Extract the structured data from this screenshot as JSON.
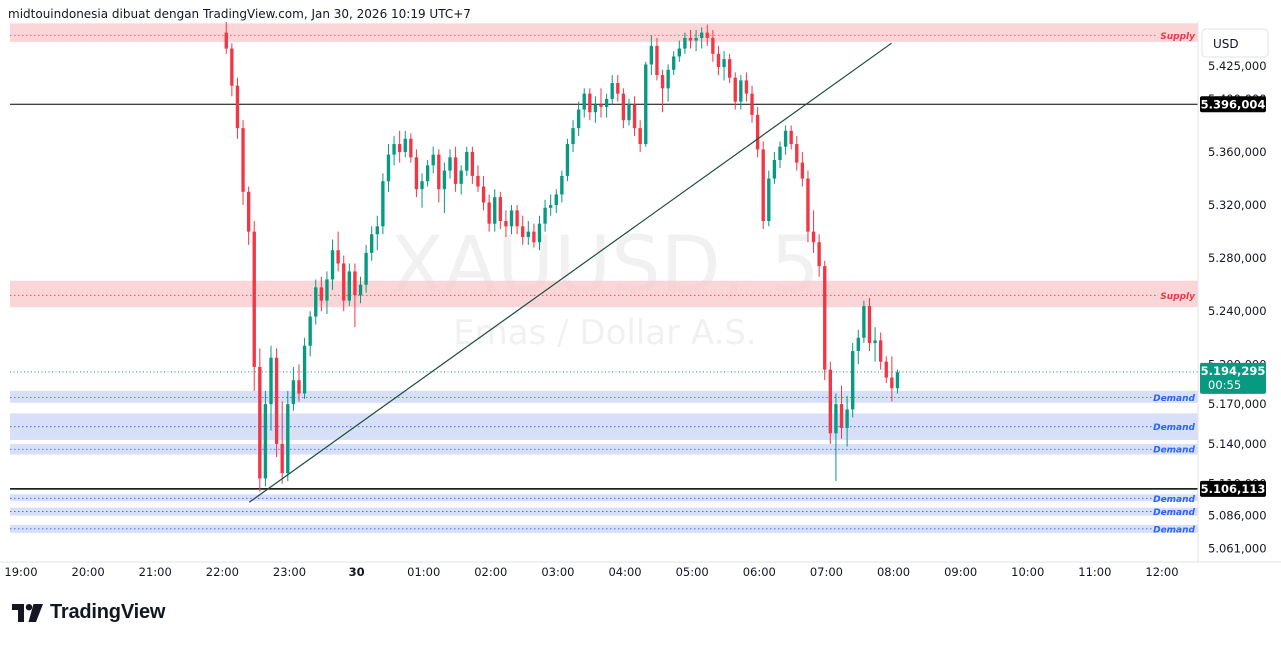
{
  "header": {
    "source_line": "midtouindonesia dibuat dengan TradingView.com, Jan 30, 2026 10:19 UTC+7"
  },
  "watermark": {
    "symbol": "XAUUSD, 5",
    "description": "Emas / Dollar A.S."
  },
  "currency_button": "USD",
  "brand": {
    "name": "TradingView"
  },
  "colors": {
    "up": "#089981",
    "down": "#F23645",
    "supply_zone": "#F9C8CC",
    "demand_zone": "#C9D5F6",
    "supply_label": "#F23645",
    "demand_label": "#2962FF",
    "trendline": "#1E4D3B",
    "hline": "#000000",
    "last_price_bg": "#089981"
  },
  "chart_data": {
    "type": "candlestick",
    "symbol": "XAUUSD",
    "timeframe": "5",
    "ylim": [
      5051,
      5458
    ],
    "y_ticks": [
      {
        "value": 5425,
        "label": "5.425,000"
      },
      {
        "value": 5400,
        "label": "5.400,000"
      },
      {
        "value": 5360,
        "label": "5.360,000"
      },
      {
        "value": 5320,
        "label": "5.320,000"
      },
      {
        "value": 5280,
        "label": "5.280,000"
      },
      {
        "value": 5240,
        "label": "5.240,000"
      },
      {
        "value": 5200,
        "label": "5.200,000"
      },
      {
        "value": 5170,
        "label": "5.170,000"
      },
      {
        "value": 5140,
        "label": "5.140,000"
      },
      {
        "value": 5110,
        "label": "5.110,000"
      },
      {
        "value": 5086,
        "label": "5.086,000"
      },
      {
        "value": 5061,
        "label": "5.061,000"
      }
    ],
    "x_ticks": [
      {
        "hour": 19,
        "label": "19:00"
      },
      {
        "hour": 20,
        "label": "20:00"
      },
      {
        "hour": 21,
        "label": "21:00"
      },
      {
        "hour": 22,
        "label": "22:00"
      },
      {
        "hour": 23,
        "label": "23:00"
      },
      {
        "hour": 24,
        "label": "30"
      },
      {
        "hour": 25,
        "label": "01:00"
      },
      {
        "hour": 26,
        "label": "02:00"
      },
      {
        "hour": 27,
        "label": "03:00"
      },
      {
        "hour": 28,
        "label": "04:00"
      },
      {
        "hour": 29,
        "label": "05:00"
      },
      {
        "hour": 30,
        "label": "06:00"
      },
      {
        "hour": 31,
        "label": "07:00"
      },
      {
        "hour": 32,
        "label": "08:00"
      },
      {
        "hour": 33,
        "label": "09:00"
      },
      {
        "hour": 34,
        "label": "10:00"
      },
      {
        "hour": 35,
        "label": "11:00"
      },
      {
        "hour": 36,
        "label": "12:00"
      }
    ],
    "candle_start_hour": 22,
    "candle_interval_minutes": 5,
    "zones": [
      {
        "kind": "supply",
        "label": "Supply",
        "top": 5457,
        "bottom": 5443,
        "line": 5448
      },
      {
        "kind": "supply",
        "label": "Supply",
        "top": 5263,
        "bottom": 5243,
        "line": 5252
      },
      {
        "kind": "demand",
        "label": "Demand",
        "top": 5180,
        "bottom": 5171,
        "line": 5175
      },
      {
        "kind": "demand",
        "label": "Demand",
        "top": 5163,
        "bottom": 5143,
        "line": 5153
      },
      {
        "kind": "demand",
        "label": "Demand",
        "top": 5140,
        "bottom": 5132,
        "line": 5136
      },
      {
        "kind": "demand",
        "label": "Demand",
        "top": 5102,
        "bottom": 5097,
        "line": 5099
      },
      {
        "kind": "demand",
        "label": "Demand",
        "top": 5092,
        "bottom": 5086,
        "line": 5089
      },
      {
        "kind": "demand",
        "label": "Demand",
        "top": 5079,
        "bottom": 5073,
        "line": 5076
      }
    ],
    "horizontal_lines": [
      {
        "value": 5396.004,
        "label": "5.396,004"
      },
      {
        "value": 5106.113,
        "label": "5.106,113"
      }
    ],
    "last_price": {
      "value": 5194.295,
      "label": "5.194,295",
      "countdown": "00:55"
    },
    "trendline": {
      "from": {
        "hour": 22.4,
        "value": 5096
      },
      "to": {
        "hour": 31.97,
        "value": 5442
      }
    },
    "ohlc": [
      [
        5450,
        5458,
        5434,
        5438
      ],
      [
        5438,
        5442,
        5402,
        5410
      ],
      [
        5410,
        5416,
        5370,
        5378
      ],
      [
        5378,
        5384,
        5320,
        5330
      ],
      [
        5330,
        5334,
        5290,
        5300
      ],
      [
        5300,
        5308,
        5180,
        5198
      ],
      [
        5198,
        5212,
        5104,
        5114
      ],
      [
        5114,
        5180,
        5108,
        5170
      ],
      [
        5170,
        5214,
        5150,
        5205
      ],
      [
        5205,
        5212,
        5130,
        5140
      ],
      [
        5140,
        5172,
        5110,
        5118
      ],
      [
        5118,
        5180,
        5112,
        5170
      ],
      [
        5170,
        5198,
        5165,
        5188
      ],
      [
        5188,
        5200,
        5172,
        5178
      ],
      [
        5178,
        5220,
        5174,
        5214
      ],
      [
        5214,
        5240,
        5206,
        5236
      ],
      [
        5236,
        5264,
        5230,
        5258
      ],
      [
        5258,
        5266,
        5240,
        5248
      ],
      [
        5248,
        5270,
        5238,
        5264
      ],
      [
        5264,
        5294,
        5256,
        5286
      ],
      [
        5286,
        5300,
        5270,
        5276
      ],
      [
        5276,
        5282,
        5240,
        5248
      ],
      [
        5248,
        5276,
        5244,
        5270
      ],
      [
        5270,
        5276,
        5228,
        5252
      ],
      [
        5252,
        5266,
        5246,
        5260
      ],
      [
        5260,
        5290,
        5254,
        5284
      ],
      [
        5284,
        5304,
        5278,
        5298
      ],
      [
        5298,
        5312,
        5286,
        5304
      ],
      [
        5304,
        5344,
        5298,
        5338
      ],
      [
        5338,
        5366,
        5330,
        5358
      ],
      [
        5358,
        5372,
        5350,
        5366
      ],
      [
        5366,
        5376,
        5352,
        5360
      ],
      [
        5360,
        5376,
        5356,
        5370
      ],
      [
        5370,
        5374,
        5352,
        5356
      ],
      [
        5356,
        5362,
        5326,
        5332
      ],
      [
        5332,
        5344,
        5318,
        5338
      ],
      [
        5338,
        5354,
        5334,
        5350
      ],
      [
        5350,
        5364,
        5344,
        5358
      ],
      [
        5358,
        5362,
        5322,
        5332
      ],
      [
        5332,
        5352,
        5314,
        5346
      ],
      [
        5346,
        5362,
        5340,
        5356
      ],
      [
        5356,
        5364,
        5330,
        5336
      ],
      [
        5336,
        5350,
        5328,
        5346
      ],
      [
        5346,
        5364,
        5342,
        5360
      ],
      [
        5360,
        5364,
        5336,
        5342
      ],
      [
        5342,
        5350,
        5330,
        5334
      ],
      [
        5334,
        5342,
        5316,
        5322
      ],
      [
        5322,
        5328,
        5300,
        5306
      ],
      [
        5306,
        5332,
        5300,
        5326
      ],
      [
        5326,
        5330,
        5302,
        5308
      ],
      [
        5308,
        5316,
        5296,
        5304
      ],
      [
        5304,
        5320,
        5298,
        5316
      ],
      [
        5316,
        5320,
        5298,
        5304
      ],
      [
        5304,
        5312,
        5290,
        5296
      ],
      [
        5296,
        5308,
        5290,
        5300
      ],
      [
        5300,
        5306,
        5288,
        5292
      ],
      [
        5292,
        5312,
        5286,
        5306
      ],
      [
        5306,
        5324,
        5300,
        5318
      ],
      [
        5318,
        5328,
        5312,
        5320
      ],
      [
        5320,
        5332,
        5314,
        5328
      ],
      [
        5328,
        5346,
        5322,
        5342
      ],
      [
        5342,
        5370,
        5338,
        5366
      ],
      [
        5366,
        5384,
        5360,
        5378
      ],
      [
        5378,
        5398,
        5372,
        5392
      ],
      [
        5392,
        5408,
        5386,
        5404
      ],
      [
        5404,
        5408,
        5384,
        5390
      ],
      [
        5390,
        5402,
        5382,
        5396
      ],
      [
        5396,
        5408,
        5386,
        5394
      ],
      [
        5394,
        5404,
        5386,
        5400
      ],
      [
        5400,
        5418,
        5396,
        5412
      ],
      [
        5412,
        5418,
        5398,
        5404
      ],
      [
        5404,
        5408,
        5378,
        5384
      ],
      [
        5384,
        5400,
        5380,
        5396
      ],
      [
        5396,
        5402,
        5372,
        5378
      ],
      [
        5378,
        5384,
        5360,
        5366
      ],
      [
        5366,
        5428,
        5364,
        5426
      ],
      [
        5426,
        5448,
        5418,
        5440
      ],
      [
        5440,
        5446,
        5414,
        5418
      ],
      [
        5418,
        5422,
        5390,
        5408
      ],
      [
        5408,
        5426,
        5398,
        5422
      ],
      [
        5422,
        5436,
        5418,
        5432
      ],
      [
        5432,
        5444,
        5428,
        5438
      ],
      [
        5438,
        5450,
        5434,
        5446
      ],
      [
        5446,
        5452,
        5438,
        5444
      ],
      [
        5444,
        5452,
        5436,
        5446
      ],
      [
        5446,
        5454,
        5438,
        5450
      ],
      [
        5450,
        5456,
        5440,
        5446
      ],
      [
        5446,
        5452,
        5428,
        5434
      ],
      [
        5434,
        5440,
        5418,
        5424
      ],
      [
        5424,
        5436,
        5414,
        5430
      ],
      [
        5430,
        5434,
        5412,
        5416
      ],
      [
        5416,
        5420,
        5392,
        5398
      ],
      [
        5398,
        5418,
        5392,
        5414
      ],
      [
        5414,
        5420,
        5398,
        5404
      ],
      [
        5404,
        5410,
        5382,
        5388
      ],
      [
        5388,
        5394,
        5356,
        5362
      ],
      [
        5362,
        5368,
        5302,
        5308
      ],
      [
        5308,
        5346,
        5304,
        5340
      ],
      [
        5340,
        5360,
        5336,
        5354
      ],
      [
        5354,
        5368,
        5348,
        5364
      ],
      [
        5364,
        5380,
        5358,
        5376
      ],
      [
        5376,
        5380,
        5362,
        5366
      ],
      [
        5366,
        5372,
        5346,
        5352
      ],
      [
        5352,
        5360,
        5334,
        5340
      ],
      [
        5340,
        5346,
        5292,
        5300
      ],
      [
        5300,
        5316,
        5284,
        5292
      ],
      [
        5292,
        5298,
        5266,
        5274
      ],
      [
        5274,
        5278,
        5188,
        5196
      ],
      [
        5196,
        5202,
        5140,
        5148
      ],
      [
        5148,
        5178,
        5112,
        5170
      ],
      [
        5170,
        5184,
        5144,
        5152
      ],
      [
        5152,
        5176,
        5138,
        5166
      ],
      [
        5166,
        5216,
        5160,
        5210
      ],
      [
        5210,
        5226,
        5200,
        5220
      ],
      [
        5220,
        5248,
        5216,
        5244
      ],
      [
        5244,
        5250,
        5210,
        5216
      ],
      [
        5216,
        5228,
        5202,
        5218
      ],
      [
        5218,
        5224,
        5196,
        5202
      ],
      [
        5202,
        5206,
        5186,
        5190
      ],
      [
        5190,
        5206,
        5172,
        5182
      ],
      [
        5182,
        5196,
        5178,
        5194
      ]
    ]
  }
}
